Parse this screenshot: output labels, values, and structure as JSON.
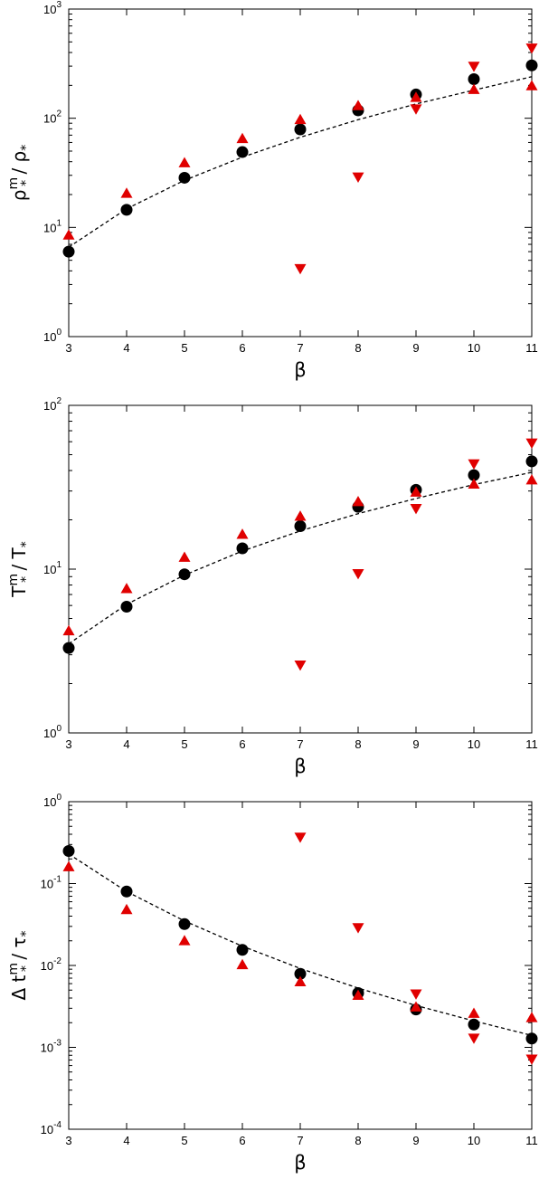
{
  "chart_data": [
    {
      "type": "scatter",
      "title": "",
      "xlabel": "β",
      "ylabel": {
        "base": "ρ",
        "sub": "*",
        "sup": "m",
        "slash": " / ",
        "base2": "ρ",
        "sub2": "*"
      },
      "yscale": "log",
      "xlim": [
        3,
        11
      ],
      "ylim": [
        1,
        1000
      ],
      "xticks": [
        "3",
        "4",
        "5",
        "6",
        "7",
        "8",
        "9",
        "10",
        "11"
      ],
      "yticks": [
        {
          "value": 1,
          "mant": "10",
          "exp": "0"
        },
        {
          "value": 10,
          "mant": "10",
          "exp": "1"
        },
        {
          "value": 100,
          "mant": "10",
          "exp": "2"
        },
        {
          "value": 1000,
          "mant": "10",
          "exp": "3"
        }
      ],
      "grid": false,
      "series": [
        {
          "marker": "circle",
          "color": "#000000",
          "points": [
            [
              3,
              6
            ],
            [
              4,
              14.5
            ],
            [
              5,
              28.5
            ],
            [
              6,
              49
            ],
            [
              7,
              79
            ],
            [
              8,
              118
            ],
            [
              9,
              165
            ],
            [
              10,
              228
            ],
            [
              11,
              305
            ]
          ]
        },
        {
          "marker": "triangle-up",
          "color": "#e00000",
          "points": [
            [
              3,
              8.5
            ],
            [
              4,
              20.5
            ],
            [
              5,
              39
            ],
            [
              6,
              65
            ],
            [
              7,
              97
            ],
            [
              8,
              130
            ],
            [
              9,
              155
            ],
            [
              10,
              183
            ],
            [
              11,
              198
            ]
          ]
        },
        {
          "marker": "triangle-down",
          "color": "#e00000",
          "points": [
            [
              7,
              4.2
            ],
            [
              8,
              29
            ],
            [
              9,
              122
            ],
            [
              10,
              300
            ],
            [
              11,
              440
            ]
          ]
        }
      ],
      "fit": {
        "style": "dashed",
        "color": "#000000",
        "points": [
          [
            3,
            6.6
          ],
          [
            4,
            14.8
          ],
          [
            5,
            27
          ],
          [
            6,
            44
          ],
          [
            7,
            67
          ],
          [
            8,
            97
          ],
          [
            9,
            135
          ],
          [
            10,
            181
          ],
          [
            11,
            240
          ]
        ]
      }
    },
    {
      "type": "scatter",
      "title": "",
      "xlabel": "β",
      "ylabel": {
        "base": "T",
        "sub": "*",
        "sup": "m",
        "slash": " / ",
        "base2": "T",
        "sub2": "*"
      },
      "yscale": "log",
      "xlim": [
        3,
        11
      ],
      "ylim": [
        1,
        100
      ],
      "xticks": [
        "3",
        "4",
        "5",
        "6",
        "7",
        "8",
        "9",
        "10",
        "11"
      ],
      "yticks": [
        {
          "value": 1,
          "mant": "10",
          "exp": "0"
        },
        {
          "value": 10,
          "mant": "10",
          "exp": "1"
        },
        {
          "value": 100,
          "mant": "10",
          "exp": "2"
        }
      ],
      "grid": false,
      "series": [
        {
          "marker": "circle",
          "color": "#000000",
          "points": [
            [
              3,
              3.3
            ],
            [
              4,
              5.9
            ],
            [
              5,
              9.3
            ],
            [
              6,
              13.4
            ],
            [
              7,
              18.3
            ],
            [
              8,
              24
            ],
            [
              9,
              30.5
            ],
            [
              10,
              37.5
            ],
            [
              11,
              45.5
            ]
          ]
        },
        {
          "marker": "triangle-up",
          "color": "#e00000",
          "points": [
            [
              3,
              4.2
            ],
            [
              4,
              7.6
            ],
            [
              5,
              11.8
            ],
            [
              6,
              16.3
            ],
            [
              7,
              21
            ],
            [
              8,
              25.8
            ],
            [
              9,
              29.5
            ],
            [
              10,
              33
            ],
            [
              11,
              35
            ]
          ]
        },
        {
          "marker": "triangle-down",
          "color": "#e00000",
          "points": [
            [
              7,
              2.6
            ],
            [
              8,
              9.4
            ],
            [
              9,
              23.5
            ],
            [
              10,
              44
            ],
            [
              11,
              59
            ]
          ]
        }
      ],
      "fit": {
        "style": "dashed",
        "color": "#000000",
        "points": [
          [
            3,
            3.5
          ],
          [
            4,
            6.1
          ],
          [
            5,
            9.2
          ],
          [
            6,
            12.9
          ],
          [
            7,
            17.1
          ],
          [
            8,
            21.8
          ],
          [
            9,
            27
          ],
          [
            10,
            32.8
          ],
          [
            11,
            39
          ]
        ]
      }
    },
    {
      "type": "scatter",
      "title": "",
      "xlabel": "β",
      "ylabel": {
        "prefix": "Δ ",
        "base": "t",
        "sub": "*",
        "sup": "m",
        "slash": " / ",
        "base2": "τ",
        "sub2": "*"
      },
      "yscale": "log",
      "xlim": [
        3,
        11
      ],
      "ylim": [
        0.0001,
        1
      ],
      "xticks": [
        "3",
        "4",
        "5",
        "6",
        "7",
        "8",
        "9",
        "10",
        "11"
      ],
      "yticks": [
        {
          "value": 0.0001,
          "mant": "10",
          "exp": "-4"
        },
        {
          "value": 0.001,
          "mant": "10",
          "exp": "-3"
        },
        {
          "value": 0.01,
          "mant": "10",
          "exp": "-2"
        },
        {
          "value": 0.1,
          "mant": "10",
          "exp": "-1"
        },
        {
          "value": 1,
          "mant": "10",
          "exp": "0"
        }
      ],
      "grid": false,
      "series": [
        {
          "marker": "circle",
          "color": "#000000",
          "points": [
            [
              3,
              0.25
            ],
            [
              4,
              0.08
            ],
            [
              5,
              0.032
            ],
            [
              6,
              0.0155
            ],
            [
              7,
              0.0079
            ],
            [
              8,
              0.0046
            ],
            [
              9,
              0.0029
            ],
            [
              10,
              0.0019
            ],
            [
              11,
              0.00128
            ]
          ]
        },
        {
          "marker": "triangle-up",
          "color": "#e00000",
          "points": [
            [
              3,
              0.16
            ],
            [
              4,
              0.048
            ],
            [
              5,
              0.02
            ],
            [
              6,
              0.0102
            ],
            [
              7,
              0.0063
            ],
            [
              8,
              0.0043
            ],
            [
              9,
              0.0031
            ],
            [
              10,
              0.0026
            ],
            [
              11,
              0.0023
            ]
          ]
        },
        {
          "marker": "triangle-down",
          "color": "#e00000",
          "points": [
            [
              7,
              0.37
            ],
            [
              8,
              0.029
            ],
            [
              9,
              0.0045
            ],
            [
              10,
              0.0013
            ],
            [
              11,
              0.00072
            ]
          ]
        }
      ],
      "fit": {
        "style": "dashed",
        "color": "#000000",
        "points": [
          [
            3,
            0.23
          ],
          [
            4,
            0.08
          ],
          [
            5,
            0.035
          ],
          [
            6,
            0.0172
          ],
          [
            7,
            0.0092
          ],
          [
            8,
            0.0053
          ],
          [
            9,
            0.00325
          ],
          [
            10,
            0.0021
          ],
          [
            11,
            0.0014
          ]
        ]
      }
    }
  ]
}
